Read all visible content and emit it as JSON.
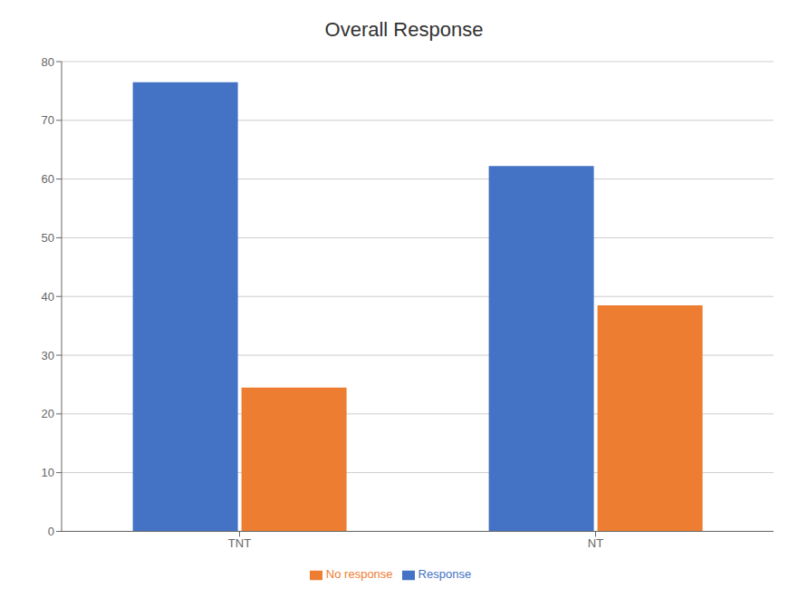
{
  "chart_data": {
    "type": "bar",
    "title": "Overall Response",
    "categories": [
      "TNT",
      "NT"
    ],
    "series": [
      {
        "name": "Response",
        "color": "#4472C4",
        "values": [
          76.5,
          62.2
        ]
      },
      {
        "name": "No response",
        "color": "#ED7D31",
        "values": [
          24.5,
          38.5
        ]
      }
    ],
    "ylim": [
      0,
      80
    ],
    "yticks": [
      0,
      10,
      20,
      30,
      40,
      50,
      60,
      70,
      80
    ],
    "grid": true,
    "legend": "bottom"
  }
}
